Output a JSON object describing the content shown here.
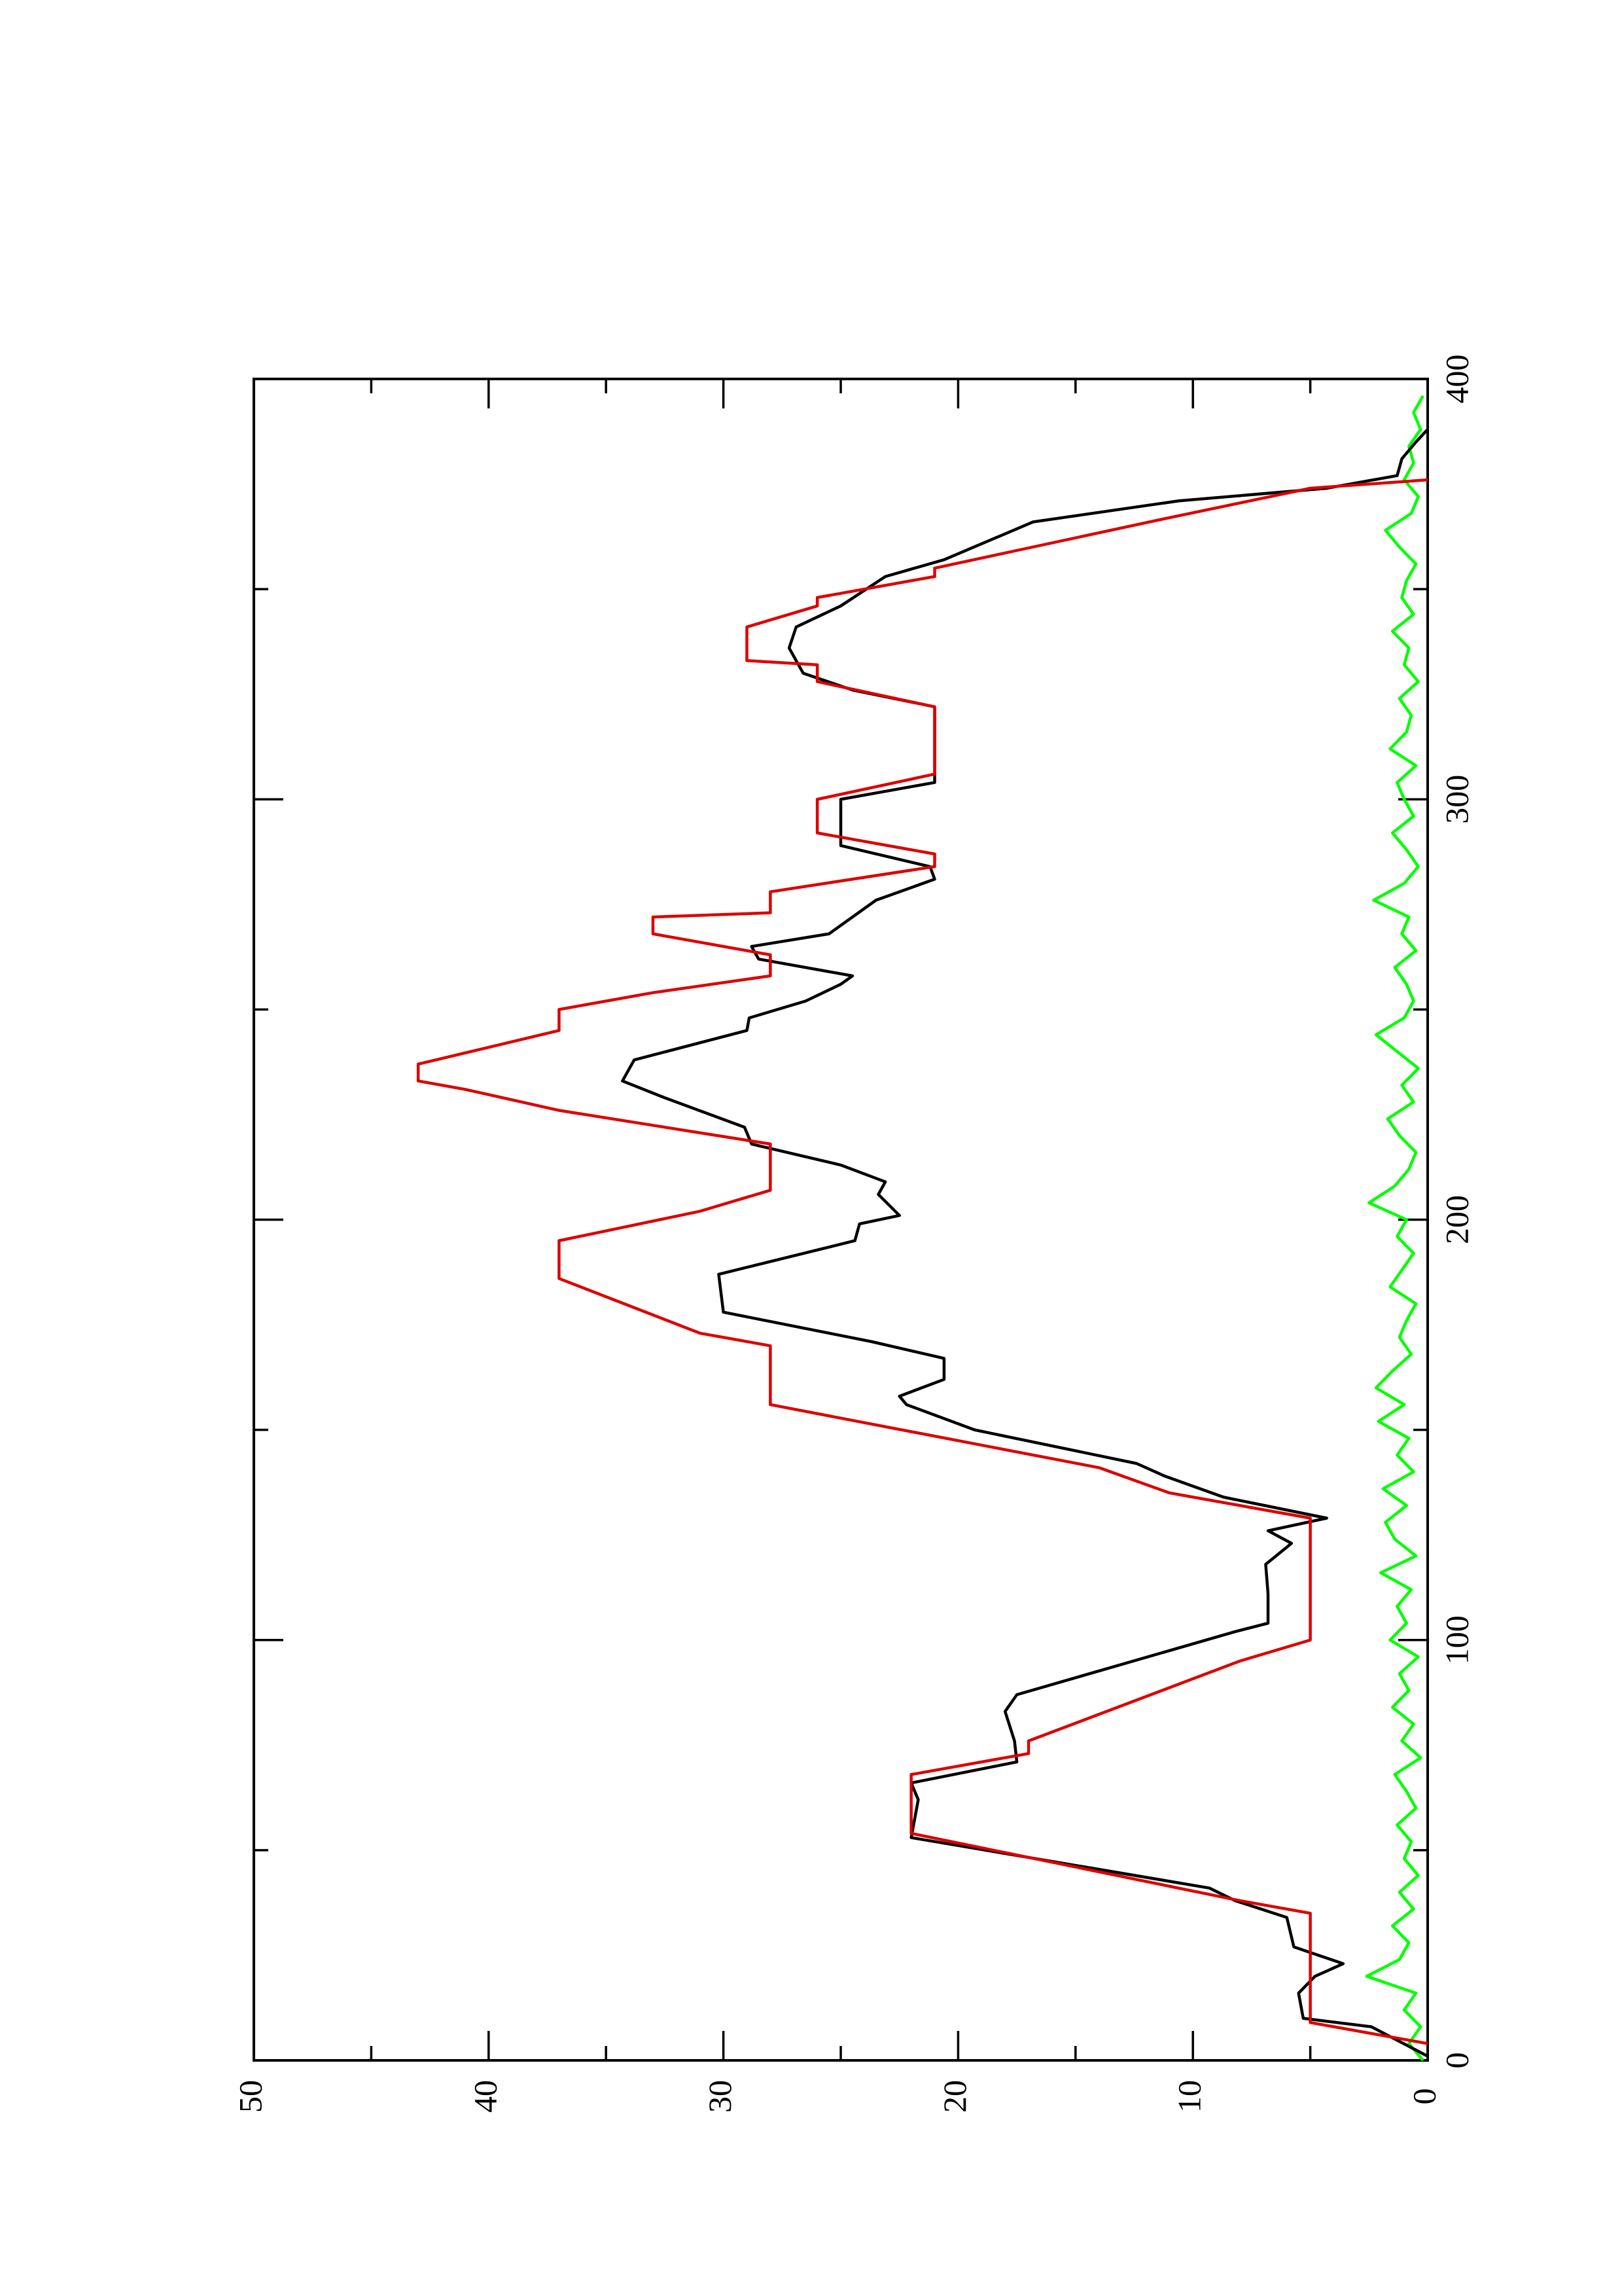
{
  "chart_data": {
    "type": "line",
    "xlim": [
      0,
      400
    ],
    "xticks": [
      0,
      100,
      200,
      300,
      400
    ],
    "xminorticks": [
      50,
      150,
      250,
      350
    ],
    "ylim": [
      0,
      50
    ],
    "yticks": [
      0,
      10,
      20,
      30,
      40,
      50
    ],
    "yminorticks": [
      5,
      15,
      25,
      35,
      45
    ],
    "series": [
      {
        "color": "#00ff00",
        "x": [
          0,
          4,
          8,
          12,
          16,
          20,
          24,
          28,
          32,
          36,
          40,
          44,
          48,
          52,
          56,
          60,
          64,
          68,
          72,
          76,
          80,
          84,
          88,
          92,
          96,
          100,
          104,
          108,
          112,
          116,
          120,
          124,
          128,
          132,
          136,
          140,
          144,
          148,
          152,
          156,
          160,
          164,
          168,
          172,
          176,
          180,
          184,
          188,
          192,
          196,
          200,
          204,
          208,
          212,
          216,
          220,
          224,
          228,
          232,
          236,
          240,
          244,
          248,
          252,
          256,
          260,
          264,
          268,
          272,
          276,
          280,
          284,
          288,
          292,
          296,
          300,
          304,
          308,
          312,
          316,
          320,
          324,
          328,
          332,
          336,
          340,
          344,
          348,
          352,
          356,
          360,
          364,
          368,
          372,
          376,
          380,
          384,
          388,
          392,
          396
        ],
        "values": [
          0.2,
          0.8,
          0.3,
          1.0,
          0.5,
          2.6,
          1.2,
          0.8,
          1.5,
          0.6,
          1.2,
          0.4,
          1.0,
          0.7,
          1.3,
          0.5,
          0.9,
          1.4,
          0.3,
          1.1,
          0.6,
          1.5,
          0.8,
          1.2,
          0.4,
          1.6,
          0.9,
          1.3,
          0.7,
          2.0,
          0.5,
          1.4,
          1.8,
          0.9,
          1.9,
          0.6,
          1.3,
          0.8,
          2.1,
          1.0,
          2.2,
          1.5,
          0.7,
          1.2,
          0.9,
          0.5,
          1.6,
          1.1,
          0.6,
          1.3,
          0.9,
          2.5,
          1.4,
          0.8,
          0.5,
          1.2,
          1.7,
          0.6,
          1.1,
          0.4,
          1.3,
          2.2,
          1.0,
          0.6,
          0.9,
          1.4,
          0.5,
          1.1,
          0.8,
          2.3,
          1.0,
          0.4,
          0.9,
          1.5,
          0.6,
          1.0,
          1.3,
          0.5,
          1.6,
          0.9,
          0.7,
          1.2,
          0.4,
          1.0,
          0.8,
          1.5,
          0.6,
          1.1,
          0.9,
          0.5,
          1.2,
          1.8,
          0.7,
          0.4,
          1.0,
          0.6,
          0.8,
          0.3,
          0.6,
          0.2
        ]
      },
      {
        "color": "#000000",
        "x": [
          1,
          8,
          10,
          16,
          20,
          23,
          27,
          34,
          38,
          41,
          53,
          62,
          66,
          71,
          76,
          83,
          87,
          102,
          104,
          111,
          118,
          123,
          126,
          129,
          134,
          139,
          142,
          150,
          156,
          158,
          162,
          167,
          171,
          178,
          187,
          195,
          199,
          201,
          206,
          209,
          213,
          218,
          222,
          229,
          233,
          238,
          245,
          248,
          252,
          256,
          258,
          262,
          265,
          268,
          272,
          276,
          281,
          284,
          289,
          300,
          304,
          322,
          326,
          330,
          336,
          341,
          346,
          353,
          357,
          366,
          371,
          374,
          377,
          381,
          385,
          388
        ],
        "values": [
          0,
          2.4,
          5.3,
          5.5,
          4.8,
          3.6,
          5.7,
          6,
          8.2,
          9.3,
          22,
          21.7,
          22,
          17.5,
          17.6,
          18,
          17.5,
          8.2,
          6.8,
          6.8,
          6.9,
          5.8,
          6.8,
          4.3,
          8.7,
          11.2,
          12.4,
          19.3,
          22.2,
          22.5,
          20.6,
          20.6,
          23.7,
          30,
          30.2,
          24.4,
          24.2,
          22.5,
          23.4,
          23.1,
          25,
          28.8,
          29.1,
          32.5,
          34.3,
          33.8,
          29,
          28.9,
          26.5,
          25,
          24.5,
          28.5,
          28.8,
          25.5,
          24.5,
          23.5,
          21,
          21.2,
          25,
          25,
          21,
          21,
          24.5,
          26.6,
          27.2,
          26.9,
          25,
          23.1,
          20.6,
          16.8,
          10.6,
          4.3,
          1.3,
          1.1,
          0.5,
          0
        ]
      },
      {
        "color": "#dd0000",
        "x": [
          4,
          9,
          35,
          38,
          54,
          68,
          73,
          76,
          95,
          100,
          129,
          135,
          141,
          156,
          170,
          173,
          186,
          195,
          202,
          207,
          218,
          226,
          231,
          233,
          237,
          245,
          250,
          254,
          258,
          263,
          268,
          272,
          273,
          278,
          284,
          287,
          292,
          300,
          306,
          322,
          328,
          332,
          333,
          341,
          346,
          348,
          353,
          355,
          367,
          374,
          376
        ],
        "values": [
          0,
          5,
          5,
          8,
          22,
          22,
          17,
          17,
          8,
          5,
          5,
          11,
          14,
          28,
          28,
          31,
          37,
          37,
          31,
          28,
          28,
          37,
          41,
          43,
          43,
          37,
          37,
          33,
          28,
          28,
          33,
          33,
          28,
          28,
          21,
          21,
          26,
          26,
          21,
          21,
          26,
          26,
          29,
          29,
          26,
          26,
          21,
          21,
          11,
          5,
          0
        ]
      }
    ]
  }
}
